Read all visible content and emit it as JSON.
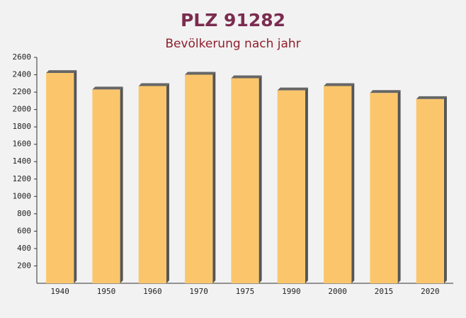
{
  "chart_data": {
    "type": "bar",
    "title": "PLZ 91282",
    "subtitle": "Bevölkerung nach jahr",
    "categories": [
      "1940",
      "1950",
      "1960",
      "1970",
      "1975",
      "1990",
      "2000",
      "2015",
      "2020"
    ],
    "values": [
      2420,
      2230,
      2270,
      2400,
      2360,
      2220,
      2270,
      2190,
      2120
    ],
    "color": "#fbc66b",
    "ylim": [
      0,
      2600
    ],
    "yticks": [
      200,
      400,
      600,
      800,
      1000,
      1200,
      1400,
      1600,
      1800,
      2000,
      2200,
      2400,
      2600
    ]
  }
}
